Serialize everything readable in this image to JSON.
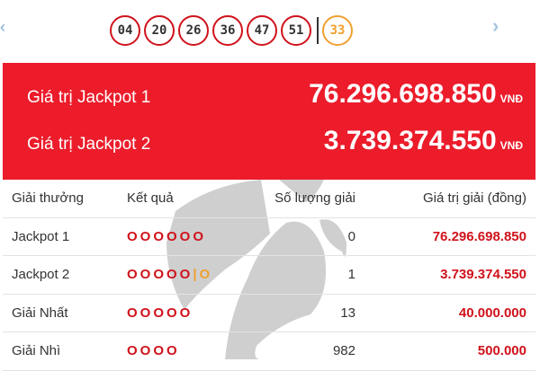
{
  "nav": {
    "prev_icon": "chevron-left-icon",
    "next_icon": "chevron-right-icon"
  },
  "balls": [
    "04",
    "20",
    "26",
    "36",
    "47",
    "51"
  ],
  "extra_ball": "33",
  "jackpots": [
    {
      "label": "Giá trị Jackpot 1",
      "value": "76.296.698.850",
      "unit": "VNĐ"
    },
    {
      "label": "Giá trị Jackpot 2",
      "value": "3.739.374.550",
      "unit": "VNĐ"
    }
  ],
  "table": {
    "headers": [
      "Giải thưởng",
      "Kết quả",
      "Số lượng giải",
      "Giá trị giải (đồng)"
    ],
    "rows": [
      {
        "prize": "Jackpot 1",
        "result": "OOOOOO",
        "extra": "",
        "count": "0",
        "value": "76.296.698.850"
      },
      {
        "prize": "Jackpot 2",
        "result": "OOOOO",
        "extra": "|O",
        "count": "1",
        "value": "3.739.374.550"
      },
      {
        "prize": "Giải Nhất",
        "result": "OOOOO",
        "extra": "",
        "count": "13",
        "value": "40.000.000"
      },
      {
        "prize": "Giải Nhì",
        "result": "OOOO",
        "extra": "",
        "count": "982",
        "value": "500.000"
      }
    ]
  },
  "colors": {
    "red": "#ec1c2b",
    "orange": "#f0a030"
  }
}
